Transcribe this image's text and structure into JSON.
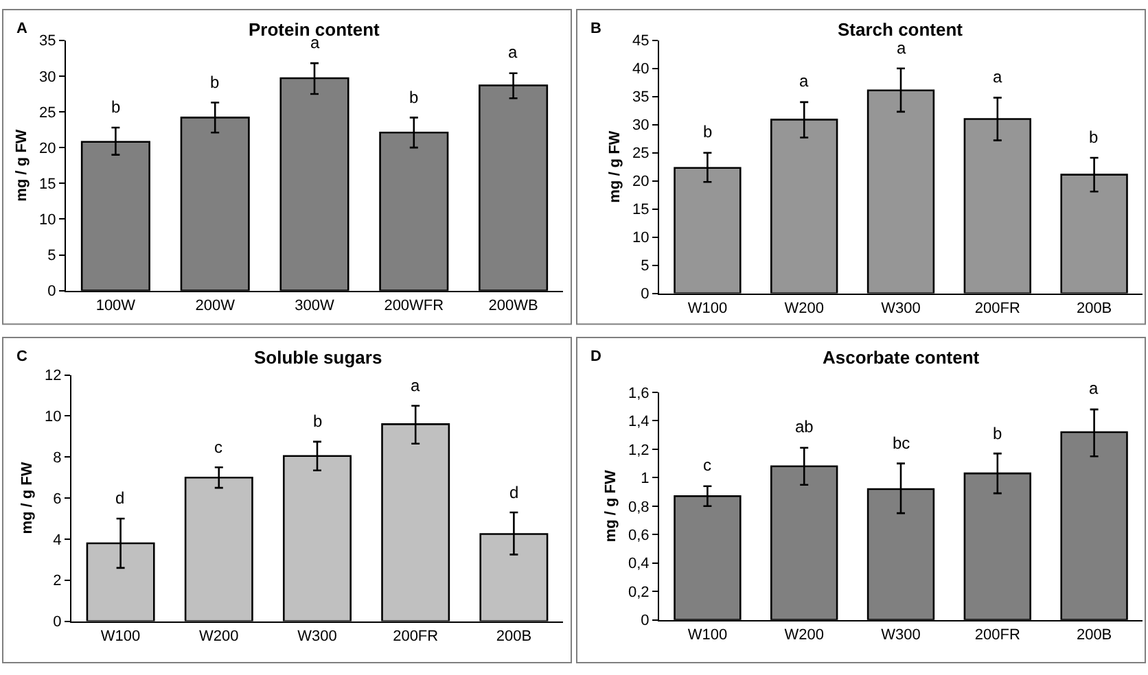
{
  "chart_data": [
    {
      "type": "bar",
      "title": "Protein content",
      "ylabel": "mg / g FW",
      "categories": [
        "100W",
        "200W",
        "300W",
        "200WFR",
        "200WB"
      ],
      "series": [
        {
          "color": "#808080",
          "values": [
            20.8,
            24.2,
            29.7,
            22.1,
            28.7
          ],
          "errors": [
            [
              19.0,
              22.8
            ],
            [
              22.1,
              26.3
            ],
            [
              27.5,
              31.8
            ],
            [
              20.0,
              24.2
            ],
            [
              26.9,
              30.4
            ]
          ],
          "value_labels": [
            "b",
            "b",
            "a",
            "b",
            "a"
          ]
        }
      ],
      "ylim": [
        0,
        35
      ],
      "yticks": [
        0,
        5,
        10,
        15,
        20,
        25,
        30,
        35
      ],
      "grid": false,
      "annotations": [
        "A"
      ]
    },
    {
      "type": "bar",
      "title": "Starch content",
      "ylabel": "mg / g FW",
      "categories": [
        "W100",
        "W200",
        "W300",
        "200FR",
        "200B"
      ],
      "series": [
        {
          "color": "#969696",
          "values": [
            22.3,
            30.9,
            36.1,
            31.0,
            21.1
          ],
          "errors": [
            [
              19.8,
              25.0
            ],
            [
              27.7,
              34.0
            ],
            [
              32.3,
              40.0
            ],
            [
              27.2,
              34.8
            ],
            [
              18.1,
              24.1
            ]
          ],
          "value_labels": [
            "b",
            "a",
            "a",
            "a",
            "b"
          ]
        }
      ],
      "ylim": [
        0,
        45
      ],
      "yticks": [
        0,
        5,
        10,
        15,
        20,
        25,
        30,
        35,
        40,
        45
      ],
      "grid": false,
      "annotations": [
        "B"
      ]
    },
    {
      "type": "bar",
      "title": "Soluble sugars",
      "ylabel": "mg / g FW",
      "categories": [
        "W100",
        "W200",
        "W300",
        "200FR",
        "200B"
      ],
      "series": [
        {
          "color": "#c0c0c0",
          "values": [
            3.8,
            7.0,
            8.05,
            9.6,
            4.25
          ],
          "errors": [
            [
              2.6,
              5.0
            ],
            [
              6.5,
              7.5
            ],
            [
              7.35,
              8.75
            ],
            [
              8.65,
              10.5
            ],
            [
              3.25,
              5.3
            ]
          ],
          "value_labels": [
            "d",
            "c",
            "b",
            "a",
            "d"
          ]
        }
      ],
      "ylim": [
        0,
        12
      ],
      "yticks": [
        0,
        2,
        4,
        6,
        8,
        10,
        12
      ],
      "grid": false,
      "annotations": [
        "C"
      ]
    },
    {
      "type": "bar",
      "title": "Ascorbate content",
      "ylabel": "mg / g FW",
      "categories": [
        "W100",
        "W200",
        "W300",
        "200FR",
        "200B"
      ],
      "series": [
        {
          "color": "#808080",
          "values": [
            0.87,
            1.08,
            0.92,
            1.03,
            1.32
          ],
          "errors": [
            [
              0.8,
              0.94
            ],
            [
              0.95,
              1.21
            ],
            [
              0.75,
              1.1
            ],
            [
              0.89,
              1.17
            ],
            [
              1.15,
              1.48
            ]
          ],
          "value_labels": [
            "c",
            "ab",
            "bc",
            "b",
            "a"
          ]
        }
      ],
      "ylim": [
        0,
        1.6
      ],
      "yticks": [
        0,
        {
          "value": 0.2,
          "label": "0,2"
        },
        {
          "value": 0.4,
          "label": "0,4"
        },
        {
          "value": 0.6,
          "label": "0,6"
        },
        {
          "value": 0.8,
          "label": "0,8"
        },
        1,
        {
          "value": 1.2,
          "label": "1,2"
        },
        {
          "value": 1.4,
          "label": "1,4"
        },
        {
          "value": 1.6,
          "label": "1,6"
        }
      ],
      "grid": false,
      "annotations": [
        "D"
      ]
    }
  ]
}
